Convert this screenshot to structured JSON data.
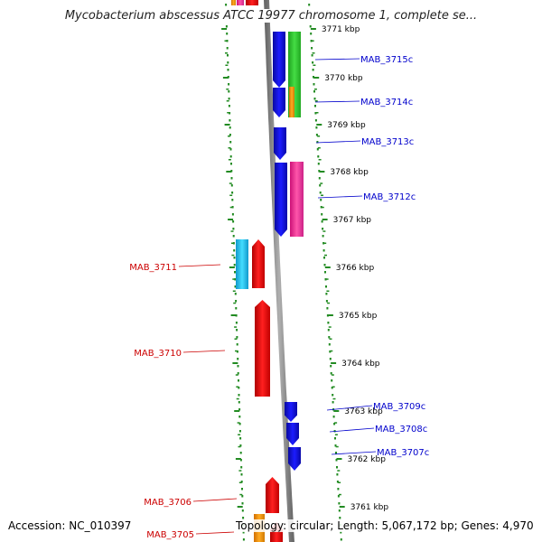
{
  "header": {
    "title": "Mycobacterium abscessus ATCC 19977 chromosome 1, complete se..."
  },
  "footer": {
    "accession": "Accession: NC_010397",
    "summary": "Topology: circular; Length: 5,067,172 bp; Genes: 4,970"
  },
  "colors": {
    "forward_label": "#0000cc",
    "reverse_label": "#cc0000",
    "backbone": "#808080",
    "ruler_dots": "#228b22",
    "blue": "#1010e0",
    "red": "#ee1111",
    "green": "#33cc33",
    "orange": "#ff9900",
    "magenta": "#ee3399",
    "cyan": "#22bbee"
  },
  "ruler_ticks": [
    {
      "label": "3771 kbp"
    },
    {
      "label": "3770 kbp"
    },
    {
      "label": "3769 kbp"
    },
    {
      "label": "3768 kbp"
    },
    {
      "label": "3767 kbp"
    },
    {
      "label": "3766 kbp"
    },
    {
      "label": "3765 kbp"
    },
    {
      "label": "3764 kbp"
    },
    {
      "label": "3763 kbp"
    },
    {
      "label": "3762 kbp"
    },
    {
      "label": "3761 kbp"
    }
  ],
  "genes": [
    {
      "name": "MAB_3715c",
      "strand": "forward",
      "color": "blue"
    },
    {
      "name": "MAB_3714c",
      "strand": "forward",
      "color": "blue"
    },
    {
      "name": "MAB_3713c",
      "strand": "forward",
      "color": "blue"
    },
    {
      "name": "MAB_3712c",
      "strand": "forward",
      "color": "blue"
    },
    {
      "name": "MAB_3711",
      "strand": "reverse",
      "color": "red"
    },
    {
      "name": "MAB_3710",
      "strand": "reverse",
      "color": "red"
    },
    {
      "name": "MAB_3709c",
      "strand": "forward",
      "color": "blue"
    },
    {
      "name": "MAB_3708c",
      "strand": "forward",
      "color": "blue"
    },
    {
      "name": "MAB_3707c",
      "strand": "forward",
      "color": "blue"
    },
    {
      "name": "MAB_3706",
      "strand": "reverse",
      "color": "red"
    },
    {
      "name": "MAB_3705",
      "strand": "reverse",
      "color": "red"
    }
  ],
  "features": [
    {
      "name": "feature-green-3715",
      "color": "green"
    },
    {
      "name": "feature-green-3714",
      "color": "green"
    },
    {
      "name": "feature-orange-3714",
      "color": "orange"
    },
    {
      "name": "feature-magenta-3712",
      "color": "magenta"
    },
    {
      "name": "feature-cyan-3711",
      "color": "cyan"
    },
    {
      "name": "feature-orange-top",
      "color": "orange"
    },
    {
      "name": "feature-pink-top",
      "color": "magenta"
    },
    {
      "name": "feature-orange-bottom",
      "color": "orange"
    }
  ]
}
